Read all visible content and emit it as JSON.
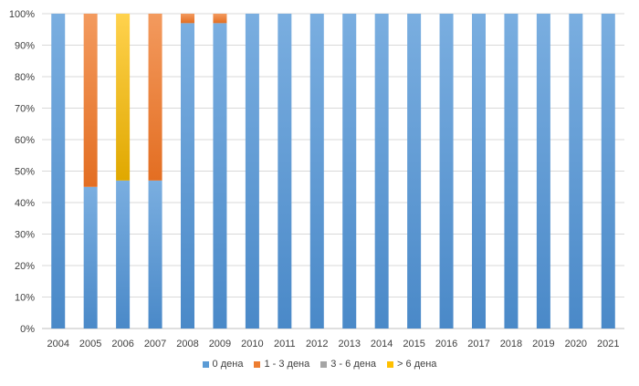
{
  "chart_data": {
    "type": "bar",
    "stacked": true,
    "percent_stacked": true,
    "categories": [
      "2004",
      "2005",
      "2006",
      "2007",
      "2008",
      "2009",
      "2010",
      "2011",
      "2012",
      "2013",
      "2014",
      "2015",
      "2016",
      "2017",
      "2018",
      "2019",
      "2020",
      "2021"
    ],
    "series": [
      {
        "name": "0 дена",
        "color": "#5b9bd5",
        "values": [
          100,
          45,
          47,
          47,
          97,
          97,
          100,
          100,
          100,
          100,
          100,
          100,
          100,
          100,
          100,
          100,
          100,
          100
        ]
      },
      {
        "name": "1 - 3 дена",
        "color": "#ed7d31",
        "values": [
          0,
          55,
          0,
          53,
          3,
          3,
          0,
          0,
          0,
          0,
          0,
          0,
          0,
          0,
          0,
          0,
          0,
          0
        ]
      },
      {
        "name": "3 - 6 дена",
        "color": "#a5a5a5",
        "values": [
          0,
          0,
          0,
          0,
          0,
          0,
          0,
          0,
          0,
          0,
          0,
          0,
          0,
          0,
          0,
          0,
          0,
          0
        ]
      },
      {
        "name": "> 6 дена",
        "color": "#ffc000",
        "values": [
          0,
          0,
          53,
          0,
          0,
          0,
          0,
          0,
          0,
          0,
          0,
          0,
          0,
          0,
          0,
          0,
          0,
          0
        ]
      }
    ],
    "ylim": [
      0,
      100
    ],
    "yticks": [
      "0%",
      "10%",
      "20%",
      "30%",
      "40%",
      "50%",
      "60%",
      "70%",
      "80%",
      "90%",
      "100%"
    ],
    "grid": true,
    "legend_position": "bottom"
  }
}
